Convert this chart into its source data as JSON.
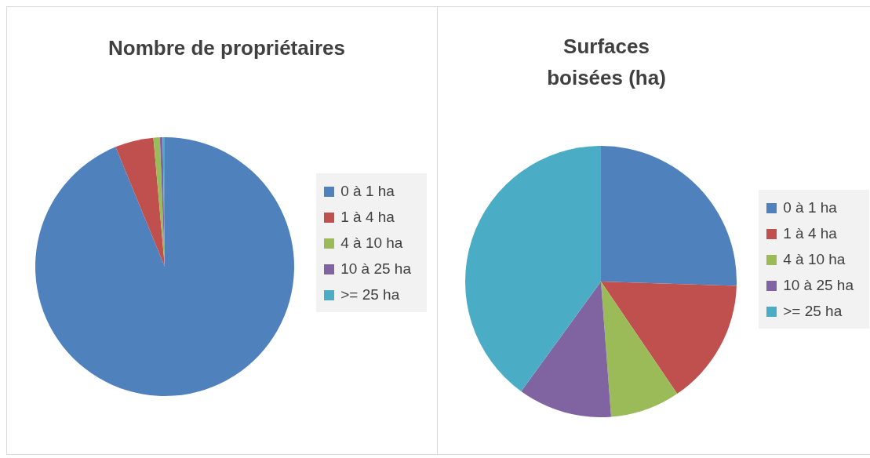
{
  "chart_data": [
    {
      "type": "pie",
      "title": "Nombre de propriétaires",
      "categories": [
        "0 à 1 ha",
        "1 à 4 ha",
        "4 à 10 ha",
        "10 à 25 ha",
        ">= 25 ha"
      ],
      "values": [
        93.8,
        4.8,
        0.8,
        0.35,
        0.25
      ],
      "colors": [
        "#4f81bd",
        "#c0504d",
        "#9bbb59",
        "#8064a2",
        "#4bacc6"
      ],
      "legend": "right"
    },
    {
      "type": "pie",
      "title": "Surfaces boisées (ha)",
      "categories": [
        "0 à 1 ha",
        "1 à 4 ha",
        "4 à 10 ha",
        "10 à 25 ha",
        ">= 25 ha"
      ],
      "values": [
        25.5,
        15,
        8.3,
        11.2,
        40
      ],
      "colors": [
        "#4f81bd",
        "#c0504d",
        "#9bbb59",
        "#8064a2",
        "#4bacc6"
      ],
      "legend": "right"
    }
  ]
}
